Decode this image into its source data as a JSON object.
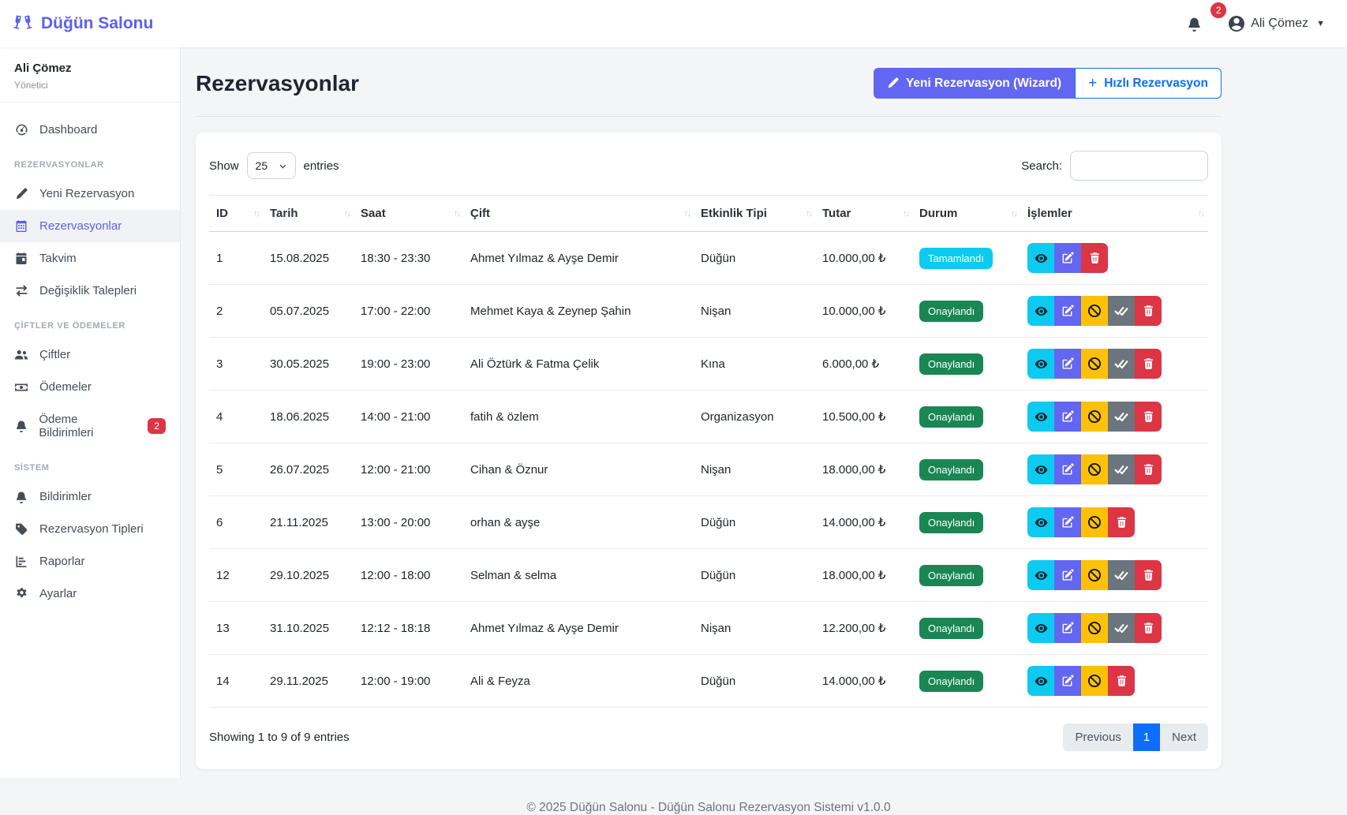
{
  "colors": {
    "accent": "#6366f1",
    "primary": "#0d6efd",
    "info": "#0dcaf0",
    "success": "#198754",
    "warning": "#ffc107",
    "secondary": "#6c757d",
    "danger": "#dc3545"
  },
  "navbar": {
    "brand": "Düğün Salonu",
    "notification_count": "2",
    "user_name": "Ali Çömez"
  },
  "sidebar": {
    "user": {
      "name": "Ali Çömez",
      "role": "Yönetici"
    },
    "sections": [
      {
        "heading": "",
        "items": [
          {
            "id": "dashboard",
            "label": "Dashboard",
            "icon": "dashboard-icon",
            "active": false
          }
        ]
      },
      {
        "heading": "REZERVASYONLAR",
        "items": [
          {
            "id": "yeni-rezervasyon",
            "label": "Yeni Rezervasyon",
            "icon": "pencil-icon",
            "active": false
          },
          {
            "id": "rezervasyonlar",
            "label": "Rezervasyonlar",
            "icon": "calendar-grid-icon",
            "active": true
          },
          {
            "id": "takvim",
            "label": "Takvim",
            "icon": "calendar-day-icon",
            "active": false
          },
          {
            "id": "degisiklik-talepleri",
            "label": "Değişiklik Talepleri",
            "icon": "exchange-icon",
            "active": false
          }
        ]
      },
      {
        "heading": "ÇİFTLER VE ÖDEMELER",
        "items": [
          {
            "id": "ciftler",
            "label": "Çiftler",
            "icon": "users-icon",
            "active": false
          },
          {
            "id": "odemeler",
            "label": "Ödemeler",
            "icon": "money-icon",
            "active": false
          },
          {
            "id": "odeme-bildirimleri",
            "label": "Ödeme Bildirimleri",
            "icon": "bell-icon",
            "active": false,
            "badge": "2"
          }
        ]
      },
      {
        "heading": "SİSTEM",
        "items": [
          {
            "id": "bildirimler",
            "label": "Bildirimler",
            "icon": "bell-icon",
            "active": false
          },
          {
            "id": "rezervasyon-tipleri",
            "label": "Rezervasyon Tipleri",
            "icon": "tags-icon",
            "active": false
          },
          {
            "id": "raporlar",
            "label": "Raporlar",
            "icon": "chart-icon",
            "active": false
          },
          {
            "id": "ayarlar",
            "label": "Ayarlar",
            "icon": "gear-icon",
            "active": false
          }
        ]
      }
    ]
  },
  "page": {
    "title": "Rezervasyonlar",
    "wizard_button": "Yeni Rezervasyon (Wizard)",
    "quick_button": "Hızlı Rezervasyon"
  },
  "controls": {
    "show_label": "Show",
    "page_size": "25",
    "entries_label": "entries",
    "search_label": "Search:",
    "search_value": ""
  },
  "table": {
    "columns": [
      "ID",
      "Tarih",
      "Saat",
      "Çift",
      "Etkinlik Tipi",
      "Tutar",
      "Durum",
      "İşlemler"
    ],
    "rows": [
      {
        "id": "1",
        "date": "15.08.2025",
        "time": "18:30 - 23:30",
        "couple": "Ahmet Yılmaz & Ayşe Demir",
        "type": "Düğün",
        "amount": "10.000,00 ₺",
        "status": "Tamamlandı",
        "status_color": "#0dcaf0",
        "actions": [
          "view",
          "edit",
          "delete"
        ]
      },
      {
        "id": "2",
        "date": "05.07.2025",
        "time": "17:00 - 22:00",
        "couple": "Mehmet Kaya & Zeynep Şahin",
        "type": "Nişan",
        "amount": "10.000,00 ₺",
        "status": "Onaylandı",
        "status_color": "#198754",
        "actions": [
          "view",
          "edit",
          "cancel",
          "complete",
          "delete"
        ]
      },
      {
        "id": "3",
        "date": "30.05.2025",
        "time": "19:00 - 23:00",
        "couple": "Ali Öztürk & Fatma Çelik",
        "type": "Kına",
        "amount": "6.000,00 ₺",
        "status": "Onaylandı",
        "status_color": "#198754",
        "actions": [
          "view",
          "edit",
          "cancel",
          "complete",
          "delete"
        ]
      },
      {
        "id": "4",
        "date": "18.06.2025",
        "time": "14:00 - 21:00",
        "couple": "fatih & özlem",
        "type": "Organizasyon",
        "amount": "10.500,00 ₺",
        "status": "Onaylandı",
        "status_color": "#198754",
        "actions": [
          "view",
          "edit",
          "cancel",
          "complete",
          "delete"
        ]
      },
      {
        "id": "5",
        "date": "26.07.2025",
        "time": "12:00 - 21:00",
        "couple": "Cihan & Öznur",
        "type": "Nişan",
        "amount": "18.000,00 ₺",
        "status": "Onaylandı",
        "status_color": "#198754",
        "actions": [
          "view",
          "edit",
          "cancel",
          "complete",
          "delete"
        ]
      },
      {
        "id": "6",
        "date": "21.11.2025",
        "time": "13:00 - 20:00",
        "couple": "orhan & ayşe",
        "type": "Düğün",
        "amount": "14.000,00 ₺",
        "status": "Onaylandı",
        "status_color": "#198754",
        "actions": [
          "view",
          "edit",
          "cancel",
          "delete"
        ]
      },
      {
        "id": "12",
        "date": "29.10.2025",
        "time": "12:00 - 18:00",
        "couple": "Selman & selma",
        "type": "Düğün",
        "amount": "18.000,00 ₺",
        "status": "Onaylandı",
        "status_color": "#198754",
        "actions": [
          "view",
          "edit",
          "cancel",
          "complete",
          "delete"
        ]
      },
      {
        "id": "13",
        "date": "31.10.2025",
        "time": "12:12 - 18:18",
        "couple": "Ahmet Yılmaz & Ayşe Demir",
        "type": "Nişan",
        "amount": "12.200,00 ₺",
        "status": "Onaylandı",
        "status_color": "#198754",
        "actions": [
          "view",
          "edit",
          "cancel",
          "complete",
          "delete"
        ]
      },
      {
        "id": "14",
        "date": "29.11.2025",
        "time": "12:00 - 19:00",
        "couple": "Ali & Feyza",
        "type": "Düğün",
        "amount": "14.000,00 ₺",
        "status": "Onaylandı",
        "status_color": "#198754",
        "actions": [
          "view",
          "edit",
          "cancel",
          "delete"
        ]
      }
    ],
    "summary": "Showing 1 to 9 of 9 entries",
    "pagination": {
      "previous": "Previous",
      "current": "1",
      "next": "Next"
    }
  },
  "footer": {
    "copyright": "© 2025 Düğün Salonu - Düğün Salonu Rezervasyon Sistemi v1.0.0"
  }
}
